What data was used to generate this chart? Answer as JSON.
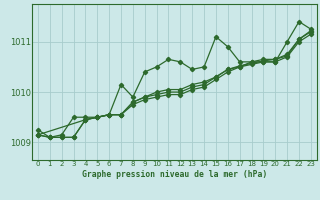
{
  "title": "Graphe pression niveau de la mer (hPa)",
  "bg_color": "#cce8e8",
  "grid_color": "#a8cccc",
  "line_color": "#2d6a2d",
  "xlim": [
    -0.5,
    23.5
  ],
  "ylim": [
    1008.65,
    1011.75
  ],
  "yticks": [
    1009,
    1010,
    1011
  ],
  "xticks": [
    0,
    1,
    2,
    3,
    4,
    5,
    6,
    7,
    8,
    9,
    10,
    11,
    12,
    13,
    14,
    15,
    16,
    17,
    18,
    19,
    20,
    21,
    22,
    23
  ],
  "series1_x": [
    0,
    1,
    2,
    3,
    4,
    5,
    6,
    7,
    8,
    9,
    10,
    11,
    12,
    13,
    14,
    15,
    16,
    17,
    18,
    19,
    20,
    21,
    22,
    23
  ],
  "series1_y": [
    1009.25,
    1009.1,
    1009.15,
    1009.5,
    1009.5,
    1009.5,
    1009.55,
    1010.15,
    1009.9,
    1010.4,
    1010.5,
    1010.65,
    1010.6,
    1010.45,
    1010.5,
    1011.1,
    1010.9,
    1010.6,
    1010.6,
    1010.6,
    1010.6,
    1011.0,
    1011.4,
    1011.25
  ],
  "series2_x": [
    0,
    1,
    2,
    3,
    4,
    5,
    6,
    7,
    8,
    9,
    10,
    11,
    12,
    13,
    14,
    15,
    16,
    17,
    18,
    19,
    20,
    21,
    22,
    23
  ],
  "series2_y": [
    1009.15,
    1009.1,
    1009.1,
    1009.1,
    1009.45,
    1009.5,
    1009.55,
    1009.55,
    1009.75,
    1009.85,
    1009.9,
    1009.95,
    1009.95,
    1010.05,
    1010.1,
    1010.25,
    1010.4,
    1010.5,
    1010.55,
    1010.6,
    1010.6,
    1010.7,
    1011.0,
    1011.15
  ],
  "series3_x": [
    0,
    1,
    2,
    3,
    4,
    5,
    6,
    7,
    8,
    9,
    10,
    11,
    12,
    13,
    14,
    15,
    16,
    17,
    18,
    19,
    20,
    21,
    22,
    23
  ],
  "series3_y": [
    1009.15,
    1009.1,
    1009.1,
    1009.1,
    1009.45,
    1009.5,
    1009.55,
    1009.55,
    1009.8,
    1009.9,
    1009.95,
    1010.0,
    1010.0,
    1010.1,
    1010.15,
    1010.3,
    1010.45,
    1010.5,
    1010.6,
    1010.65,
    1010.65,
    1010.75,
    1011.05,
    1011.2
  ],
  "series4_x": [
    0,
    4,
    5,
    6,
    7,
    8,
    9,
    10,
    11,
    12,
    13,
    14,
    15,
    16,
    17,
    18,
    19,
    20,
    21,
    22,
    23
  ],
  "series4_y": [
    1009.15,
    1009.45,
    1009.5,
    1009.55,
    1009.55,
    1009.8,
    1009.9,
    1010.0,
    1010.05,
    1010.05,
    1010.15,
    1010.2,
    1010.3,
    1010.45,
    1010.52,
    1010.57,
    1010.62,
    1010.65,
    1010.72,
    1011.05,
    1011.22
  ]
}
